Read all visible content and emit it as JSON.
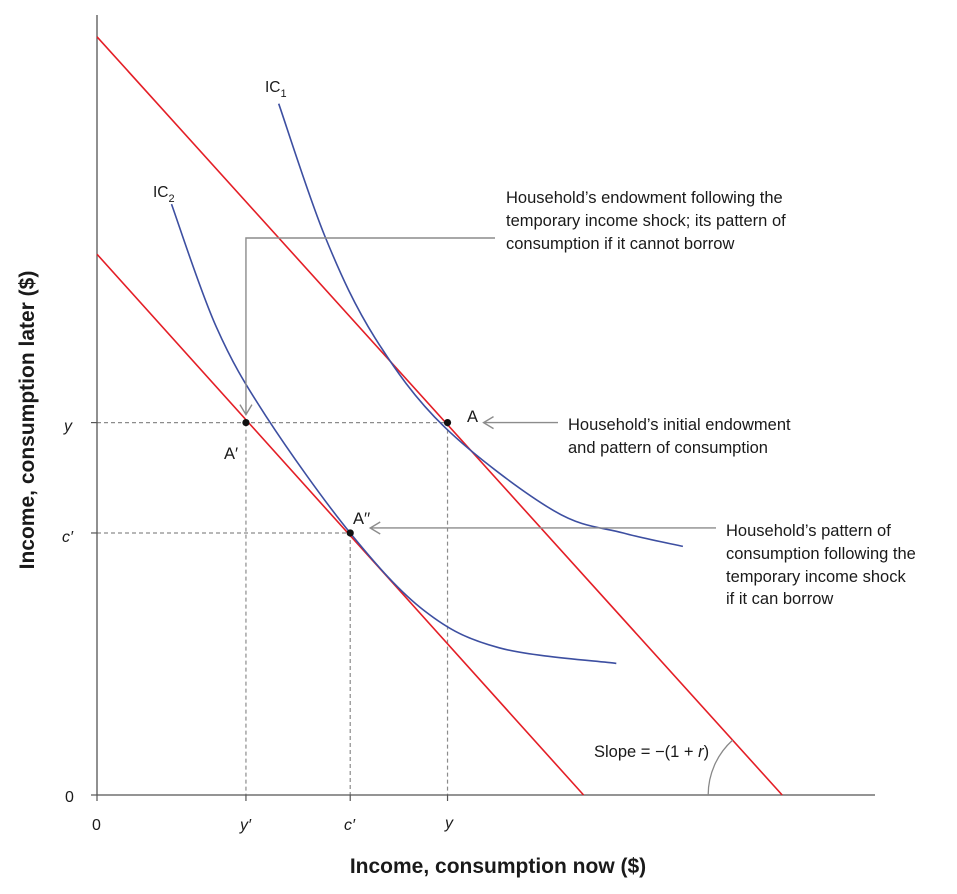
{
  "chart_data": {
    "type": "line",
    "xlabel": "Income, consumption now ($)",
    "ylabel": "Income, consumption later ($)",
    "x_origin_label": "0",
    "y_origin_label": "0",
    "x_tick_labels": [
      "y′",
      "c′",
      "y"
    ],
    "y_tick_labels": [
      "y",
      "c′"
    ],
    "budget_lines": [
      {
        "name": "initial budget constraint",
        "x": [
          0,
          6.9
        ],
        "y": [
          6.8,
          0
        ],
        "color": "#e41e26"
      },
      {
        "name": "budget constraint after shock",
        "x": [
          0,
          4.9
        ],
        "y": [
          4.85,
          0
        ],
        "color": "#e41e26"
      }
    ],
    "series": [
      {
        "name": "IC₁",
        "label_main": "IC",
        "label_sub": "1",
        "color": "#3d4fa1",
        "points": [
          [
            1.83,
            6.2
          ],
          [
            2.3,
            5.0
          ],
          [
            2.8,
            4.1
          ],
          [
            3.5,
            3.3
          ],
          [
            4.6,
            2.55
          ],
          [
            5.3,
            2.35
          ],
          [
            5.9,
            2.23
          ]
        ]
      },
      {
        "name": "IC₂",
        "label_main": "IC",
        "label_sub": "2",
        "color": "#3d4fa1",
        "points": [
          [
            0.75,
            5.3
          ],
          [
            1.2,
            4.2
          ],
          [
            1.7,
            3.4
          ],
          [
            2.55,
            2.35
          ],
          [
            3.3,
            1.65
          ],
          [
            4.05,
            1.32
          ],
          [
            5.23,
            1.18
          ]
        ]
      }
    ],
    "points": [
      {
        "label": "A",
        "x": 3.53,
        "y": 3.34
      },
      {
        "label": "A′",
        "x": 1.5,
        "y": 3.34
      },
      {
        "label": "A′′",
        "x": 2.55,
        "y": 2.35
      }
    ],
    "slope_label": "Slope = −(1 + ",
    "slope_var": "r",
    "slope_close": ")",
    "annotations": [
      {
        "lines": [
          "Household’s endowment following the",
          "temporary income shock; its pattern of",
          "consumption if it cannot borrow"
        ]
      },
      {
        "lines": [
          "Household’s initial endowment",
          "and pattern of consumption"
        ]
      },
      {
        "lines": [
          "Household’s pattern of",
          "consumption following the",
          "temporary income shock",
          "if it can borrow"
        ]
      }
    ]
  }
}
